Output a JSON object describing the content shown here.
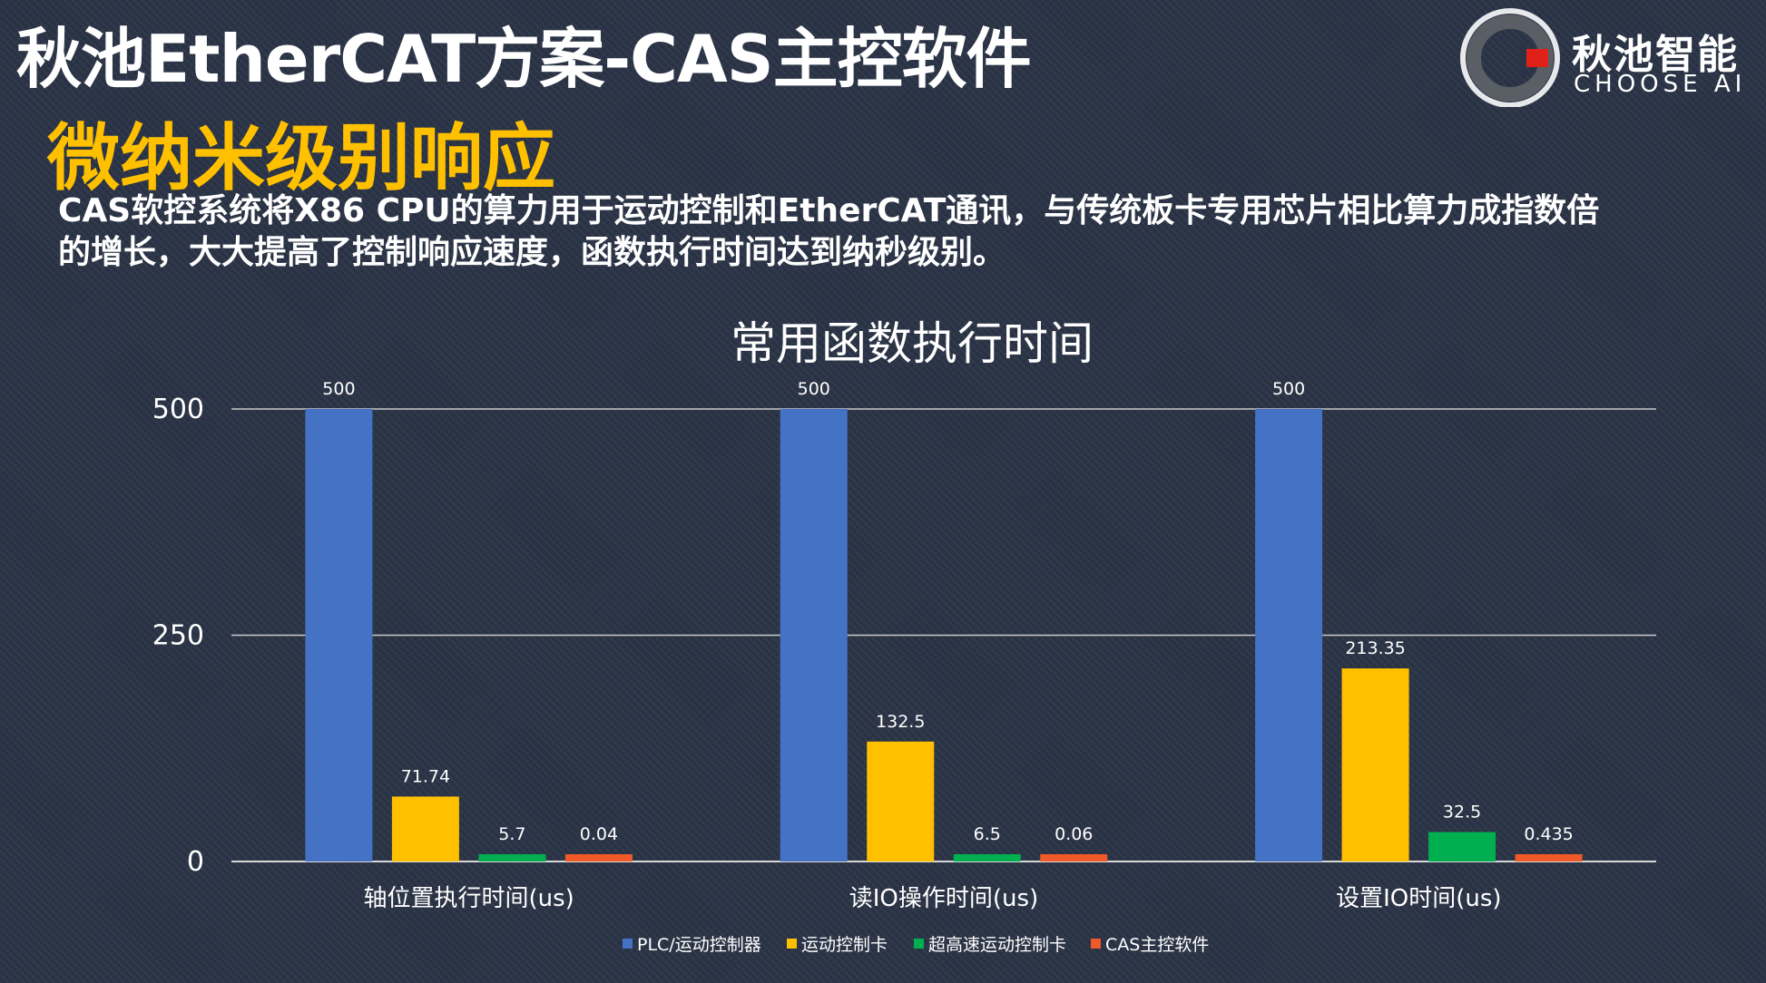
{
  "slide": {
    "title": "秋池EtherCAT方案-CAS主控软件",
    "section_title": "微纳米级别响应",
    "description": "CAS软控系统将X86 CPU的算力用于运动控制和EtherCAT通讯，与传统板卡专用芯片相比算力成指数倍的增长，大大提高了控制响应速度，函数执行时间达到纳秒级别。"
  },
  "logo": {
    "cn": "秋池智能",
    "en": "CHOOSE AI",
    "colors": {
      "ring": "#c9ccd1",
      "accent": "#e0211a"
    }
  },
  "chart_data": {
    "type": "bar",
    "title": "常用函数执行时间",
    "categories": [
      "轴位置执行时间(us)",
      "读IO操作时间(us)",
      "设置IO时间(us)"
    ],
    "series": [
      {
        "name": "PLC/运动控制器",
        "color": "#4472c4",
        "values": [
          500,
          500,
          500
        ]
      },
      {
        "name": "运动控制卡",
        "color": "#ffc000",
        "values": [
          71.74,
          132.5,
          213.35
        ]
      },
      {
        "name": "超高速运动控制卡",
        "color": "#00b050",
        "values": [
          5.7,
          6.5,
          32.5
        ]
      },
      {
        "name": "CAS主控软件",
        "color": "#f05a28",
        "values": [
          0.04,
          0.06,
          0.435
        ]
      }
    ],
    "ylim": [
      0,
      500
    ],
    "yticks": [
      0,
      250,
      500
    ],
    "grid": true,
    "legend": "bottom"
  }
}
